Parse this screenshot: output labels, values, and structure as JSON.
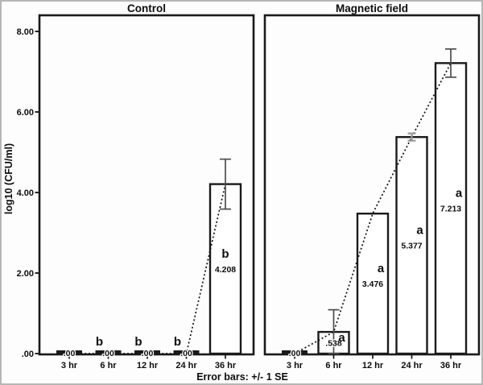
{
  "figure": {
    "ylabel": "log10 (CFU/ml)",
    "caption": "Error bars: +/- 1 SE"
  },
  "chart_data": {
    "type": "bar",
    "categories": [
      "3 hr",
      "6 hr",
      "12 hr",
      "24 hr",
      "36 hr"
    ],
    "xlabel": "",
    "ylabel": "log10 (CFU/ml)",
    "ylim": [
      0,
      8.4
    ],
    "grid": false,
    "legend": "none",
    "caption": "Error bars: +/- 1 SE",
    "y_ticks": [
      {
        "value": 0,
        "label": ".00"
      },
      {
        "value": 2,
        "label": "2.00"
      },
      {
        "value": 4,
        "label": "4.00"
      },
      {
        "value": 6,
        "label": "6.00"
      },
      {
        "value": 8,
        "label": "8.00"
      }
    ],
    "panels": [
      {
        "title": "Control",
        "values": [
          0,
          0,
          0,
          0,
          4.208
        ],
        "value_labels": [
          ".00",
          ".00",
          ".00",
          ".00",
          "4.208"
        ],
        "sig_letters": [
          "",
          "b",
          "b",
          "b",
          "b"
        ],
        "se": [
          null,
          null,
          null,
          null,
          0.62
        ]
      },
      {
        "title": "Magnetic field",
        "values": [
          0,
          0.538,
          3.476,
          5.377,
          7.213
        ],
        "value_labels": [
          ".00",
          ".538",
          "3.476",
          "5.377",
          "7.213"
        ],
        "sig_letters": [
          "",
          "a",
          "a",
          "a",
          "a"
        ],
        "se": [
          null,
          0.55,
          null,
          0.09,
          0.35
        ]
      }
    ],
    "trend_line": "dotted",
    "style": {
      "bar_fill": "#ffffff",
      "bar_border": "#1a1a1a",
      "trend_color": "#111111",
      "error_bar_color": "#4d4d4d",
      "small_error_bar_color": "#999999",
      "frame_color": "#1a1a1a",
      "text_color": "#0d0d0d",
      "outer_border": "#b6b6b6"
    }
  }
}
